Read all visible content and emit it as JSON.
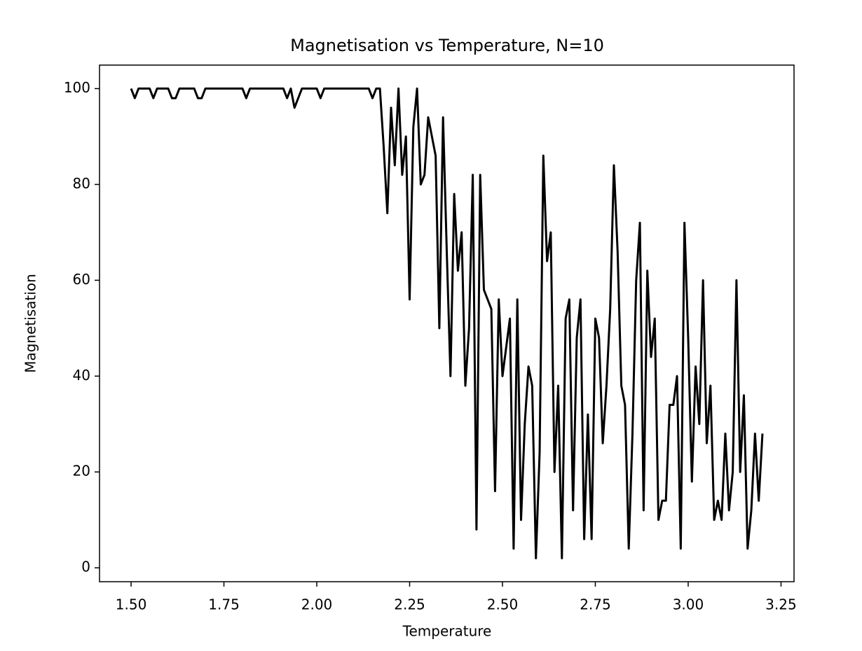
{
  "chart_data": {
    "type": "line",
    "title": "Magnetisation vs Temperature, N=10",
    "x_label": "Temperature",
    "y_label": "Magnetisation",
    "x": [
      1.5,
      1.51,
      1.52,
      1.53,
      1.54,
      1.55,
      1.56,
      1.57,
      1.58,
      1.59,
      1.6,
      1.61,
      1.62,
      1.63,
      1.64,
      1.65,
      1.66,
      1.67,
      1.68,
      1.69,
      1.7,
      1.71,
      1.72,
      1.73,
      1.74,
      1.75,
      1.76,
      1.77,
      1.78,
      1.79,
      1.8,
      1.81,
      1.82,
      1.83,
      1.84,
      1.85,
      1.86,
      1.87,
      1.88,
      1.89,
      1.9,
      1.91,
      1.92,
      1.93,
      1.94,
      1.95,
      1.96,
      1.97,
      1.98,
      1.99,
      2.0,
      2.01,
      2.02,
      2.03,
      2.04,
      2.05,
      2.06,
      2.07,
      2.08,
      2.09,
      2.1,
      2.11,
      2.12,
      2.13,
      2.14,
      2.15,
      2.16,
      2.17,
      2.18,
      2.19,
      2.2,
      2.21,
      2.22,
      2.23,
      2.24,
      2.25,
      2.26,
      2.27,
      2.28,
      2.29,
      2.3,
      2.31,
      2.32,
      2.33,
      2.34,
      2.35,
      2.36,
      2.37,
      2.38,
      2.39,
      2.4,
      2.41,
      2.42,
      2.43,
      2.44,
      2.45,
      2.46,
      2.47,
      2.48,
      2.49,
      2.5,
      2.51,
      2.52,
      2.53,
      2.54,
      2.55,
      2.56,
      2.57,
      2.58,
      2.59,
      2.6,
      2.61,
      2.62,
      2.63,
      2.64,
      2.65,
      2.66,
      2.67,
      2.68,
      2.69,
      2.7,
      2.71,
      2.72,
      2.73,
      2.74,
      2.75,
      2.76,
      2.77,
      2.78,
      2.79,
      2.8,
      2.81,
      2.82,
      2.83,
      2.84,
      2.85,
      2.86,
      2.87,
      2.88,
      2.89,
      2.9,
      2.91,
      2.92,
      2.93,
      2.94,
      2.95,
      2.96,
      2.97,
      2.98,
      2.99,
      3.0,
      3.01,
      3.02,
      3.03,
      3.04,
      3.05,
      3.06,
      3.07,
      3.08,
      3.09,
      3.1,
      3.11,
      3.12,
      3.13,
      3.14,
      3.15,
      3.16,
      3.17,
      3.18,
      3.19,
      3.2
    ],
    "series": [
      {
        "color": "#000000",
        "values": [
          100,
          98,
          100,
          100,
          100,
          100,
          98,
          100,
          100,
          100,
          100,
          98,
          98,
          100,
          100,
          100,
          100,
          100,
          98,
          98,
          100,
          100,
          100,
          100,
          100,
          100,
          100,
          100,
          100,
          100,
          100,
          98,
          100,
          100,
          100,
          100,
          100,
          100,
          100,
          100,
          100,
          100,
          98,
          100,
          96,
          98,
          100,
          100,
          100,
          100,
          100,
          98,
          100,
          100,
          100,
          100,
          100,
          100,
          100,
          100,
          100,
          100,
          100,
          100,
          100,
          98,
          100,
          100,
          88,
          74,
          96,
          84,
          100,
          82,
          90,
          56,
          92,
          100,
          80,
          82,
          94,
          90,
          86,
          50,
          94,
          66,
          40,
          78,
          62,
          70,
          38,
          50,
          82,
          8,
          82,
          58,
          56,
          54,
          16,
          56,
          40,
          46,
          52,
          4,
          56,
          10,
          30,
          42,
          38,
          2,
          24,
          86,
          64,
          70,
          20,
          38,
          2,
          52,
          56,
          12,
          48,
          56,
          6,
          32,
          6,
          52,
          48,
          26,
          38,
          54,
          84,
          66,
          38,
          34,
          4,
          28,
          60,
          72,
          12,
          62,
          44,
          52,
          10,
          14,
          14,
          34,
          34,
          40,
          4,
          72,
          48,
          18,
          42,
          30,
          60,
          26,
          38,
          10,
          14,
          10,
          28,
          12,
          20,
          60,
          20,
          36,
          4,
          12,
          28,
          14,
          28
        ]
      }
    ],
    "xlim": [
      1.415,
      3.285
    ],
    "ylim": [
      -2.9,
      104.9
    ],
    "xticks": [
      {
        "value": 1.5,
        "label": "1.50"
      },
      {
        "value": 1.75,
        "label": "1.75"
      },
      {
        "value": 2.0,
        "label": "2.00"
      },
      {
        "value": 2.25,
        "label": "2.25"
      },
      {
        "value": 2.5,
        "label": "2.50"
      },
      {
        "value": 2.75,
        "label": "2.75"
      },
      {
        "value": 3.0,
        "label": "3.00"
      },
      {
        "value": 3.25,
        "label": "3.25"
      }
    ],
    "yticks": [
      0,
      20,
      40,
      60,
      80,
      100
    ]
  }
}
